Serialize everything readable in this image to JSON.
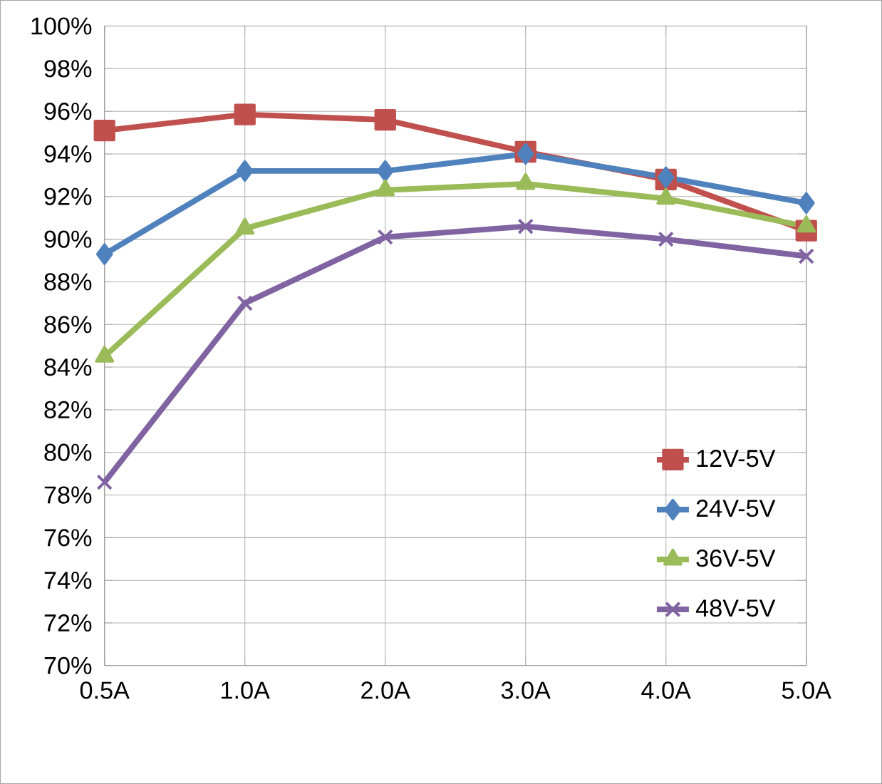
{
  "chart_data": {
    "type": "line",
    "categories": [
      "0.5A",
      "1.0A",
      "2.0A",
      "3.0A",
      "4.0A",
      "5.0A"
    ],
    "series": [
      {
        "name": "12V-5V",
        "color": "#c0504d",
        "marker": "square",
        "values": [
          95.1,
          95.85,
          95.6,
          94.1,
          92.8,
          90.4
        ]
      },
      {
        "name": "24V-5V",
        "color": "#4f81bd",
        "marker": "diamond",
        "values": [
          89.3,
          93.2,
          93.2,
          94.0,
          92.9,
          91.7
        ]
      },
      {
        "name": "36V-5V",
        "color": "#9bbb59",
        "marker": "triangle",
        "values": [
          84.5,
          90.5,
          92.3,
          92.6,
          91.9,
          90.6
        ]
      },
      {
        "name": "48V-5V",
        "color": "#8064a2",
        "marker": "cross",
        "values": [
          78.6,
          87.0,
          90.1,
          90.6,
          90.0,
          89.2
        ]
      }
    ],
    "ylim": [
      70,
      100
    ],
    "yticks": [
      {
        "value": 70,
        "label": "70%"
      },
      {
        "value": 72,
        "label": "72%"
      },
      {
        "value": 74,
        "label": "74%"
      },
      {
        "value": 76,
        "label": "76%"
      },
      {
        "value": 78,
        "label": "78%"
      },
      {
        "value": 80,
        "label": "80%"
      },
      {
        "value": 82,
        "label": "82%"
      },
      {
        "value": 84,
        "label": "84%"
      },
      {
        "value": 86,
        "label": "86%"
      },
      {
        "value": 88,
        "label": "88%"
      },
      {
        "value": 90,
        "label": "90%"
      },
      {
        "value": 92,
        "label": "92%"
      },
      {
        "value": 94,
        "label": "94%"
      },
      {
        "value": 96,
        "label": "96%"
      },
      {
        "value": 98,
        "label": "98%"
      },
      {
        "value": 100,
        "label": "100%"
      }
    ],
    "grid": true,
    "legend": "bottom right",
    "line_style": "solid"
  }
}
